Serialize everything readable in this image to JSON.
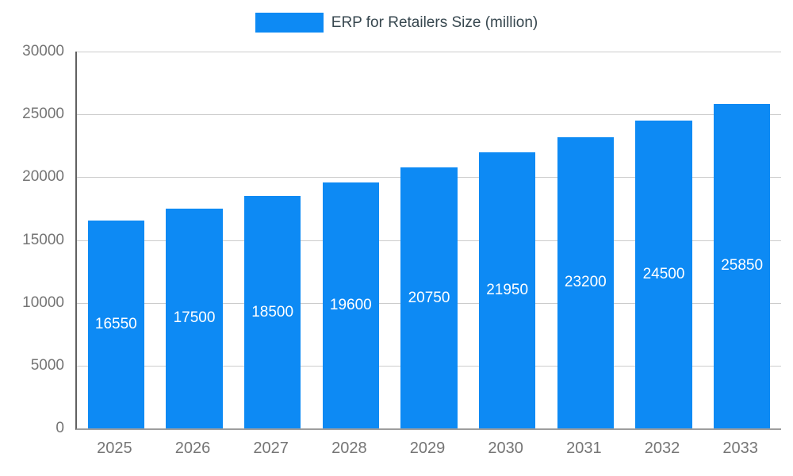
{
  "chart_data": {
    "type": "bar",
    "title": "ERP for Retailers Size (million)",
    "categories": [
      "2025",
      "2026",
      "2027",
      "2028",
      "2029",
      "2030",
      "2031",
      "2032",
      "2033"
    ],
    "values": [
      16550,
      17500,
      18500,
      19600,
      20750,
      21950,
      23200,
      24500,
      25850
    ],
    "xlabel": "",
    "ylabel": "",
    "ylim": [
      0,
      30000
    ],
    "ytick_interval": 5000,
    "yticks": [
      "0",
      "5000",
      "10000",
      "15000",
      "20000",
      "25000",
      "30000"
    ],
    "grid": true,
    "legend_position": "top-center",
    "colors": {
      "bar": "#0d8af4",
      "value_label": "#ffffff",
      "axis_text": "#757575",
      "legend_text": "#37474f",
      "gridline": "#cccccc",
      "axis_line_left": "#616161",
      "axis_line_bottom": "#9e9e9e",
      "background": "#ffffff"
    }
  }
}
